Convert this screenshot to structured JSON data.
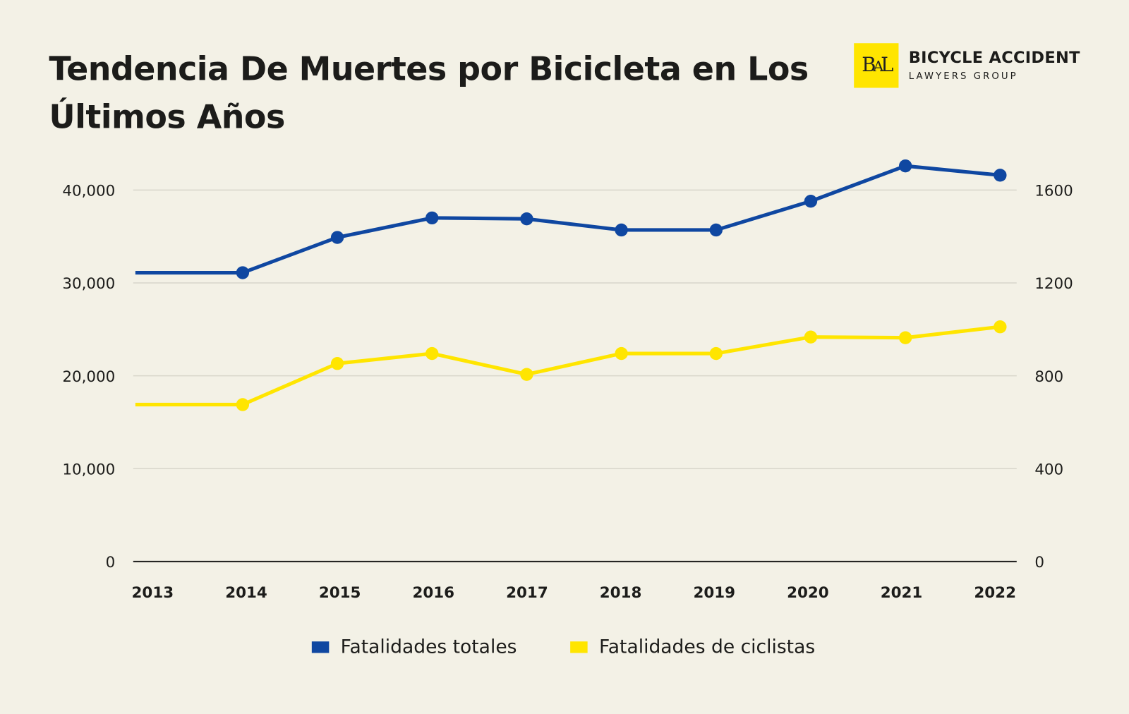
{
  "title": "Tendencia De Muertes por Bicicleta en Los Últimos Años",
  "logo": {
    "mark": "BAL",
    "line1": "BICYCLE ACCIDENT",
    "line2": "LAWYERS GROUP",
    "color": "#ffe500"
  },
  "chart_data": {
    "type": "line",
    "title": "Tendencia De Muertes por Bicicleta en Los Últimos Años",
    "categories": [
      "2013",
      "2014",
      "2015",
      "2016",
      "2017",
      "2018",
      "2019",
      "2020",
      "2021",
      "2022"
    ],
    "series": [
      {
        "name": "Fatalidades totales",
        "axis": "left",
        "color": "#0f47a1",
        "values": [
          31100,
          31100,
          34900,
          37000,
          36900,
          35700,
          35700,
          38800,
          42600,
          41600
        ]
      },
      {
        "name": "Fatalidades de ciclistas",
        "axis": "right",
        "color": "#ffe500",
        "values": [
          676,
          676,
          853,
          896,
          806,
          896,
          896,
          967,
          964,
          1011
        ]
      }
    ],
    "y_left": {
      "range": [
        0,
        40000
      ],
      "ticks": [
        "0",
        "10,000",
        "20,000",
        "30,000",
        "40,000"
      ],
      "tick_values": [
        0,
        10000,
        20000,
        30000,
        40000
      ]
    },
    "y_right": {
      "range": [
        0,
        1600
      ],
      "ticks": [
        "0",
        "400",
        "800",
        "1200",
        "1600"
      ],
      "tick_values": [
        0,
        400,
        800,
        1200,
        1600
      ]
    },
    "grid": true,
    "legend": "bottom"
  }
}
